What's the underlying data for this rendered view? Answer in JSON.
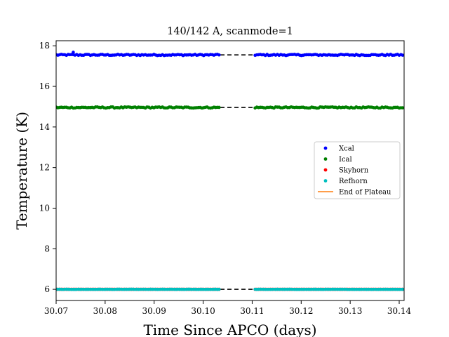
{
  "chart_data": {
    "type": "scatter",
    "title": "140/142 A, scanmode=1",
    "xlabel": "Time Since APCO (days)",
    "ylabel": "Temperature (K)",
    "xlim": [
      30.07,
      30.141
    ],
    "ylim": [
      5.45,
      18.25
    ],
    "xticks": [
      30.07,
      30.08,
      30.09,
      30.1,
      30.11,
      30.12,
      30.13,
      30.14
    ],
    "xtick_labels": [
      "30.07",
      "30.08",
      "30.09",
      "30.10",
      "30.11",
      "30.12",
      "30.13",
      "30.14"
    ],
    "yticks": [
      6,
      8,
      10,
      12,
      14,
      16,
      18
    ],
    "ytick_labels": [
      "6",
      "8",
      "10",
      "12",
      "14",
      "16",
      "18"
    ],
    "grid": false,
    "legend_position": "center-right",
    "data_gap": [
      30.1035,
      30.1105
    ],
    "series": [
      {
        "name": "Xcal",
        "kind": "points",
        "color": "#0000ff",
        "mean": 17.55,
        "jitter": 0.03,
        "x_range": [
          30.07,
          30.141
        ],
        "spike": {
          "x": 30.0735,
          "y": 17.68
        }
      },
      {
        "name": "Ical",
        "kind": "points",
        "color": "#008000",
        "mean": 14.96,
        "jitter": 0.03,
        "x_range": [
          30.07,
          30.141
        ]
      },
      {
        "name": "Skyhorn",
        "kind": "points",
        "color": "#ff0000",
        "mean": 6.0,
        "jitter": 0.0,
        "x_range": [
          30.07,
          30.141
        ]
      },
      {
        "name": "Refhorn",
        "kind": "points",
        "color": "#00bfbf",
        "mean": 6.0,
        "jitter": 0.005,
        "x_range": [
          30.07,
          30.141
        ]
      },
      {
        "name": "End of Plateau",
        "kind": "line",
        "color": "#ff7f0e"
      }
    ],
    "gap_lines": [
      {
        "y": 17.55,
        "color": "#000000",
        "style": "dashed"
      },
      {
        "y": 14.96,
        "color": "#000000",
        "style": "dashed"
      },
      {
        "y": 6.0,
        "color": "#000000",
        "style": "dashed"
      }
    ]
  }
}
